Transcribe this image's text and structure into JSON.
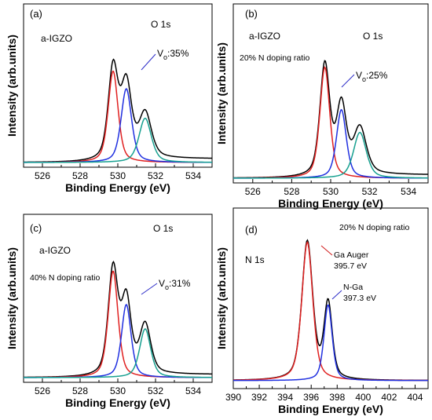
{
  "chart_data": [
    {
      "type": "line",
      "panel_label": "(a)",
      "sample": "a-IGZO",
      "doping": "",
      "core_level": "O 1s",
      "annotation": {
        "pre": "V",
        "sub": "o",
        "post": ":35%"
      },
      "xlabel": "Binding Energy (eV)",
      "ylabel": "Intensity (arb.units)",
      "xlim": [
        525,
        535
      ],
      "xticks": [
        526,
        528,
        530,
        532,
        534
      ],
      "series": [
        {
          "color": "#000000",
          "peaks": [
            {
              "center": 529.75,
              "height": 0.62,
              "width": 0.62
            },
            {
              "center": 530.45,
              "height": 0.5,
              "width": 0.66
            },
            {
              "center": 531.45,
              "height": 0.3,
              "width": 0.78
            }
          ],
          "baseline": 0.0,
          "step": 0.025
        },
        {
          "color": "#e02020",
          "peaks": [
            {
              "center": 529.75,
              "height": 0.62,
              "width": 0.62
            }
          ],
          "baseline": 0.0,
          "step": 0.0
        },
        {
          "color": "#2030e0",
          "peaks": [
            {
              "center": 530.45,
              "height": 0.5,
              "width": 0.66
            }
          ],
          "baseline": 0.0,
          "step": 0.0
        },
        {
          "color": "#17a090",
          "peaks": [
            {
              "center": 531.45,
              "height": 0.3,
              "width": 0.78
            }
          ],
          "baseline": 0.0,
          "step": 0.0
        }
      ]
    },
    {
      "type": "line",
      "panel_label": "(b)",
      "sample": "a-IGZO",
      "doping": "20% N doping ratio",
      "core_level": "O 1s",
      "annotation": {
        "pre": "V",
        "sub": "o",
        "post": ":25%"
      },
      "xlabel": "Binding Energy (eV)",
      "ylabel": "Intensity (arb.units)",
      "xlim": [
        525,
        535
      ],
      "xticks": [
        526,
        528,
        530,
        532,
        534
      ],
      "series": [
        {
          "color": "#000000",
          "peaks": [
            {
              "center": 529.7,
              "height": 0.68,
              "width": 0.6
            },
            {
              "center": 530.55,
              "height": 0.42,
              "width": 0.6
            },
            {
              "center": 531.5,
              "height": 0.28,
              "width": 0.78
            }
          ],
          "baseline": 0.0,
          "step": 0.02
        },
        {
          "color": "#e02020",
          "peaks": [
            {
              "center": 529.7,
              "height": 0.68,
              "width": 0.6
            }
          ],
          "baseline": 0.0,
          "step": 0.0
        },
        {
          "color": "#2030e0",
          "peaks": [
            {
              "center": 530.55,
              "height": 0.42,
              "width": 0.6
            }
          ],
          "baseline": 0.0,
          "step": 0.0
        },
        {
          "color": "#17a090",
          "peaks": [
            {
              "center": 531.5,
              "height": 0.28,
              "width": 0.78
            }
          ],
          "baseline": 0.0,
          "step": 0.0
        }
      ]
    },
    {
      "type": "line",
      "panel_label": "(c)",
      "sample": "a-IGZO",
      "doping": "40% N doping ratio",
      "core_level": "O 1s",
      "annotation": {
        "pre": "V",
        "sub": "o",
        "post": ":31%"
      },
      "xlabel": "Binding Energy (eV)",
      "ylabel": "Intensity (arb.units)",
      "xlim": [
        525,
        535
      ],
      "xticks": [
        526,
        528,
        530,
        532,
        534
      ],
      "series": [
        {
          "color": "#000000",
          "peaks": [
            {
              "center": 529.75,
              "height": 0.7,
              "width": 0.62
            },
            {
              "center": 530.45,
              "height": 0.48,
              "width": 0.6
            },
            {
              "center": 531.45,
              "height": 0.32,
              "width": 0.7
            }
          ],
          "baseline": 0.0,
          "step": 0.02
        },
        {
          "color": "#e02020",
          "peaks": [
            {
              "center": 529.75,
              "height": 0.7,
              "width": 0.62
            }
          ],
          "baseline": 0.0,
          "step": 0.0
        },
        {
          "color": "#2030e0",
          "peaks": [
            {
              "center": 530.45,
              "height": 0.48,
              "width": 0.6
            }
          ],
          "baseline": 0.0,
          "step": 0.0
        },
        {
          "color": "#17a090",
          "peaks": [
            {
              "center": 531.45,
              "height": 0.32,
              "width": 0.7
            }
          ],
          "baseline": 0.0,
          "step": 0.0
        }
      ]
    },
    {
      "type": "line",
      "panel_label": "(d)",
      "sample": "",
      "doping": "20% N doping ratio",
      "core_level": "N 1s",
      "annotations": [
        {
          "line1": "Ga Auger",
          "line2": "395.7 eV"
        },
        {
          "line1": "N-Ga",
          "line2": "397.3 eV"
        }
      ],
      "xlabel": "Binding Energy (eV)",
      "ylabel": "Intensity (arb.units)",
      "xlim": [
        390,
        405
      ],
      "xticks": [
        390,
        392,
        394,
        396,
        398,
        400,
        402,
        404
      ],
      "series": [
        {
          "color": "#000000",
          "peaks": [
            {
              "center": 395.7,
              "height": 0.84,
              "width": 1.0
            },
            {
              "center": 397.3,
              "height": 0.46,
              "width": 0.75
            }
          ],
          "baseline": 0.02,
          "step": 0.0
        },
        {
          "color": "#e02020",
          "peaks": [
            {
              "center": 395.7,
              "height": 0.84,
              "width": 1.0
            }
          ],
          "baseline": 0.02,
          "step": 0.0
        },
        {
          "color": "#2030e0",
          "peaks": [
            {
              "center": 397.3,
              "height": 0.46,
              "width": 0.75
            }
          ],
          "baseline": 0.02,
          "step": 0.0
        }
      ]
    }
  ]
}
